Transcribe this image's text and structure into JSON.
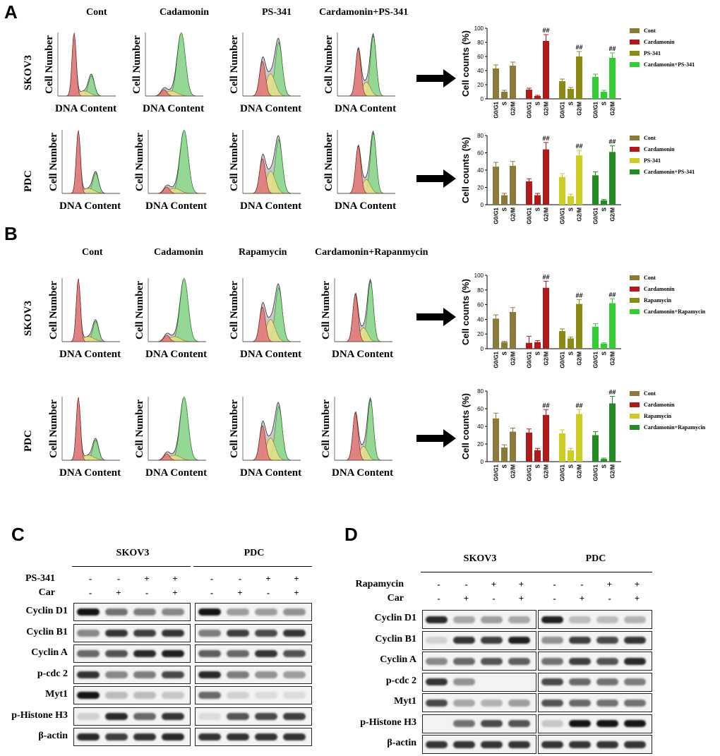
{
  "panels": {
    "A": {
      "label": "A",
      "columns": [
        "Cont",
        "Cadamonin",
        "PS-341",
        "Cardamonin+PS-341"
      ],
      "rows": [
        "SKOV3",
        "PDC"
      ],
      "y_axis_label": "Cell Number",
      "x_axis_label": "DNA Content"
    },
    "B": {
      "label": "B",
      "columns": [
        "Cont",
        "Cadamonin",
        "Rapamycin",
        "Cardamonin+Rapanmycin"
      ],
      "rows": [
        "SKOV3",
        "PDC"
      ],
      "y_axis_label": "Cell Number",
      "x_axis_label": "DNA Content"
    },
    "C": {
      "label": "C",
      "groups": [
        "SKOV3",
        "PDC"
      ],
      "treatments": [
        {
          "name": "PS-341",
          "signs": [
            "-",
            "-",
            "+",
            "+",
            "-",
            "-",
            "+",
            "+"
          ]
        },
        {
          "name": "Car",
          "signs": [
            "-",
            "+",
            "-",
            "+",
            "-",
            "+",
            "-",
            "+"
          ]
        }
      ],
      "proteins": [
        "Cyclin D1",
        "Cyclin B1",
        "Cyclin A",
        "p-cdc 2",
        "Myt1",
        "p-Histone H3",
        "β-actin"
      ],
      "band_levels": [
        [
          1.0,
          0.55,
          0.5,
          0.45,
          1.0,
          0.35,
          0.35,
          0.4
        ],
        [
          0.45,
          0.85,
          0.8,
          0.85,
          0.5,
          0.8,
          0.75,
          0.85
        ],
        [
          0.6,
          0.7,
          0.9,
          0.95,
          0.65,
          0.6,
          0.85,
          0.7
        ],
        [
          0.85,
          0.45,
          0.5,
          0.75,
          0.9,
          0.5,
          0.4,
          0.35
        ],
        [
          1.0,
          0.2,
          0.2,
          0.15,
          0.6,
          0.1,
          0.05,
          0.05
        ],
        [
          0.1,
          0.9,
          0.6,
          0.85,
          0.05,
          0.7,
          0.75,
          0.8
        ],
        [
          0.9,
          0.8,
          0.85,
          0.9,
          0.85,
          0.85,
          0.85,
          0.85
        ]
      ]
    },
    "D": {
      "label": "D",
      "groups": [
        "SKOV3",
        "PDC"
      ],
      "treatments": [
        {
          "name": "Rapamycin",
          "signs": [
            "-",
            "-",
            "+",
            "+",
            "-",
            "-",
            "+",
            "+"
          ]
        },
        {
          "name": "Car",
          "signs": [
            "-",
            "+",
            "-",
            "+",
            "-",
            "+",
            "-",
            "+"
          ]
        }
      ],
      "proteins": [
        "Cyclin D1",
        "Cyclin B1",
        "Cyclin A",
        "p-cdc 2",
        "Myt1",
        "p-Histone H3",
        "β-actin"
      ],
      "band_levels": [
        [
          0.9,
          0.3,
          0.35,
          0.3,
          0.95,
          0.2,
          0.2,
          0.25
        ],
        [
          0.1,
          0.85,
          0.8,
          0.95,
          0.4,
          0.8,
          0.75,
          0.85
        ],
        [
          0.45,
          0.6,
          0.7,
          0.65,
          0.55,
          0.8,
          0.7,
          0.9
        ],
        [
          0.85,
          0.4,
          0.0,
          0.0,
          0.75,
          0.6,
          0.55,
          0.5
        ],
        [
          0.75,
          0.3,
          0.25,
          0.35,
          0.7,
          0.6,
          0.55,
          0.55
        ],
        [
          0.0,
          0.55,
          0.75,
          0.7,
          0.15,
          1.0,
          1.0,
          1.0
        ],
        [
          0.85,
          0.85,
          0.85,
          0.85,
          0.85,
          0.85,
          0.85,
          0.85
        ]
      ]
    }
  },
  "chart_data": [
    {
      "type": "bar",
      "ylabel": "Cell counts (%)",
      "ylim": [
        0,
        100
      ],
      "yticks": [
        0,
        20,
        40,
        60,
        80,
        100
      ],
      "categories": [
        "G0/G1",
        "S",
        "G2/M"
      ],
      "legend_position": "right",
      "series": [
        {
          "name": "Cont",
          "color": "#8b7a3a",
          "values": [
            43,
            10,
            47
          ],
          "errors": [
            5,
            2,
            5
          ],
          "marks": [
            "",
            "",
            ""
          ]
        },
        {
          "name": "Cardamonin",
          "color": "#b01a1a",
          "values": [
            13,
            4,
            82
          ],
          "errors": [
            2,
            1,
            9
          ],
          "marks": [
            "",
            "",
            "##"
          ]
        },
        {
          "name": "PS-341",
          "color": "#8b8a14",
          "values": [
            25,
            14,
            60
          ],
          "errors": [
            3,
            2,
            7
          ],
          "marks": [
            "",
            "",
            "##"
          ]
        },
        {
          "name": "Cardamonin+PS-341",
          "color": "#33cc33",
          "values": [
            31,
            10,
            58
          ],
          "errors": [
            4,
            2,
            7
          ],
          "marks": [
            "",
            "",
            "##"
          ]
        }
      ]
    },
    {
      "type": "bar",
      "ylabel": "Cell counts (%)",
      "ylim": [
        0,
        80
      ],
      "yticks": [
        0,
        20,
        40,
        60,
        80
      ],
      "categories": [
        "G0/G1",
        "S",
        "G2/M"
      ],
      "legend_position": "right",
      "series": [
        {
          "name": "Cont",
          "color": "#8b7a3a",
          "values": [
            44,
            11,
            45
          ],
          "errors": [
            5,
            2,
            5
          ],
          "marks": [
            "",
            "",
            ""
          ]
        },
        {
          "name": "Cardamonin",
          "color": "#b01a1a",
          "values": [
            27,
            11,
            64
          ],
          "errors": [
            3,
            2,
            8
          ],
          "marks": [
            "",
            "",
            "##"
          ]
        },
        {
          "name": "PS-341",
          "color": "#cccc22",
          "values": [
            32,
            10,
            57
          ],
          "errors": [
            4,
            2,
            6
          ],
          "marks": [
            "",
            "",
            "##"
          ]
        },
        {
          "name": "Cardamonin+PS-341",
          "color": "#228b22",
          "values": [
            34,
            5,
            61
          ],
          "errors": [
            4,
            1,
            7
          ],
          "marks": [
            "",
            "",
            "##"
          ]
        }
      ]
    },
    {
      "type": "bar",
      "ylabel": "Cell counts (%)",
      "ylim": [
        0,
        100
      ],
      "yticks": [
        0,
        20,
        40,
        60,
        80,
        100
      ],
      "categories": [
        "G0/G1",
        "S",
        "G2/M"
      ],
      "legend_position": "right",
      "series": [
        {
          "name": "Cont",
          "color": "#8b7a3a",
          "values": [
            41,
            9,
            50
          ],
          "errors": [
            5,
            1,
            6
          ],
          "marks": [
            "",
            "",
            ""
          ]
        },
        {
          "name": "Cardamonin",
          "color": "#b01a1a",
          "values": [
            8,
            9,
            83
          ],
          "errors": [
            9,
            2,
            9
          ],
          "marks": [
            "",
            "",
            "##"
          ]
        },
        {
          "name": "Rapamycin",
          "color": "#8b8a14",
          "values": [
            24,
            14,
            61
          ],
          "errors": [
            3,
            2,
            6
          ],
          "marks": [
            "",
            "",
            "##"
          ]
        },
        {
          "name": "Cardamonin+Rapamycin",
          "color": "#33cc33",
          "values": [
            30,
            7,
            62
          ],
          "errors": [
            4,
            1,
            6
          ],
          "marks": [
            "",
            "",
            "##"
          ]
        }
      ]
    },
    {
      "type": "bar",
      "ylabel": "Cell counts (%)",
      "ylim": [
        0,
        80
      ],
      "yticks": [
        0,
        20,
        40,
        60,
        80
      ],
      "categories": [
        "G0/G1",
        "S",
        "G2/M"
      ],
      "legend_position": "right",
      "series": [
        {
          "name": "Cont",
          "color": "#8b7a3a",
          "values": [
            49,
            16,
            34
          ],
          "errors": [
            6,
            3,
            4
          ],
          "marks": [
            "",
            "",
            ""
          ]
        },
        {
          "name": "Cardamonin",
          "color": "#b01a1a",
          "values": [
            33,
            13,
            53
          ],
          "errors": [
            4,
            2,
            6
          ],
          "marks": [
            "",
            "",
            "##"
          ]
        },
        {
          "name": "Rapamycin",
          "color": "#cccc22",
          "values": [
            32,
            13,
            54
          ],
          "errors": [
            4,
            2,
            5
          ],
          "marks": [
            "",
            "",
            "##"
          ]
        },
        {
          "name": "Cardamonin+Rapamycin",
          "color": "#228b22",
          "values": [
            30,
            3,
            66
          ],
          "errors": [
            4,
            1,
            8
          ],
          "marks": [
            "",
            "",
            "##"
          ]
        }
      ]
    }
  ]
}
